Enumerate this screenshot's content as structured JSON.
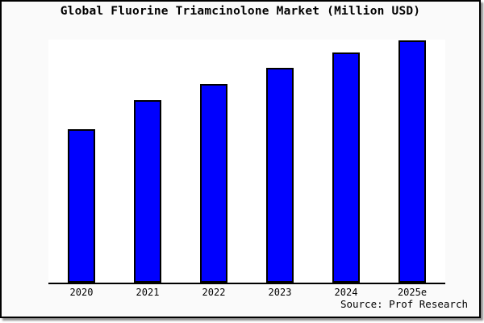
{
  "window": {
    "background_color": "#fafafa",
    "frame_border_color": "#000000",
    "plot_background_color": "#ffffff"
  },
  "title": "Global Fluorine Triamcinolone Market (Million USD)",
  "source": "Source: Prof Research",
  "chart_data": {
    "type": "bar",
    "title": "Global Fluorine Triamcinolone Market (Million USD)",
    "categories": [
      "2020",
      "2021",
      "2022",
      "2023",
      "2024",
      "2025e"
    ],
    "values": [
      190,
      226,
      246,
      266,
      285,
      300
    ],
    "values_note": "y-axis is unlabeled; values are relative units estimated from bar heights (max bar = 300)",
    "xlabel": "",
    "ylabel": "",
    "ylim": [
      0,
      301
    ],
    "grid": false,
    "legend": false,
    "bar_color": "#0000fe",
    "bar_border_color": "#000000",
    "source_annotation": "Source: Prof Research"
  }
}
